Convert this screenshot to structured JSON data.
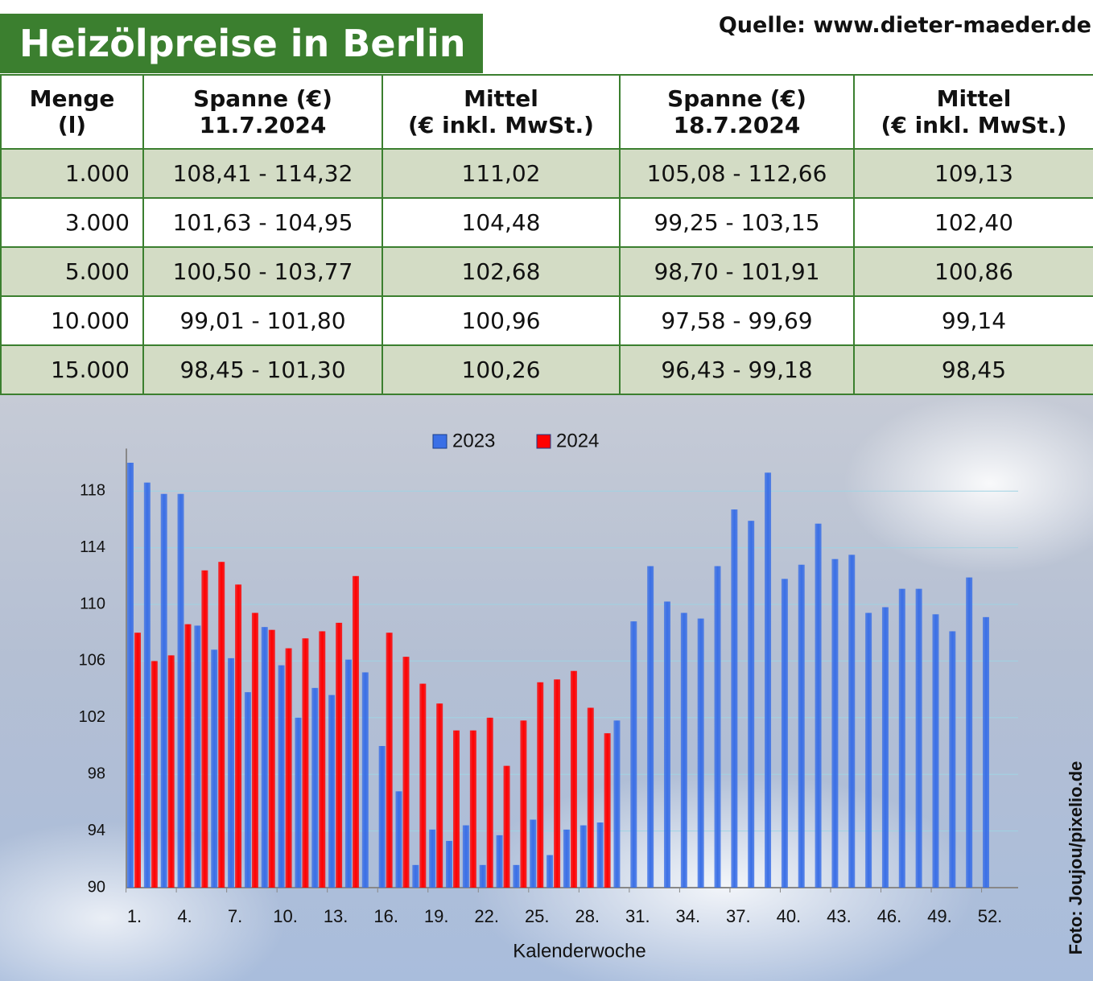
{
  "header": {
    "title": "Heizölpreise in Berlin",
    "source": "Quelle: www.dieter-maeder.de"
  },
  "table": {
    "headers": [
      [
        "Menge",
        "(l)"
      ],
      [
        "Spanne (€)",
        "11.7.2024"
      ],
      [
        "Mittel",
        "(€ inkl. MwSt.)"
      ],
      [
        "Spanne (€)",
        "18.7.2024"
      ],
      [
        "Mittel",
        "(€ inkl. MwSt.)"
      ]
    ],
    "rows": [
      [
        "1.000",
        "108,41 - 114,32",
        "111,02",
        "105,08 - 112,66",
        "109,13"
      ],
      [
        "3.000",
        "101,63 - 104,95",
        "104,48",
        "99,25 - 103,15",
        "102,40"
      ],
      [
        "5.000",
        "100,50 - 103,77",
        "102,68",
        "98,70 - 101,91",
        "100,86"
      ],
      [
        "10.000",
        "99,01 - 101,80",
        "100,96",
        "97,58 - 99,69",
        "99,14"
      ],
      [
        "15.000",
        "98,45 - 101,30",
        "100,26",
        "96,43 - 99,18",
        "98,45"
      ]
    ]
  },
  "chart_data": {
    "type": "bar",
    "x_label": "Kalenderwoche",
    "credit": "Foto: Joujou/pixelio.de",
    "categories": [
      "1.",
      null,
      null,
      "4.",
      null,
      null,
      "7.",
      null,
      null,
      "10.",
      null,
      null,
      "13.",
      null,
      null,
      "16.",
      null,
      null,
      "19.",
      null,
      null,
      "22.",
      null,
      null,
      "25.",
      null,
      null,
      "28.",
      null,
      null,
      "31.",
      null,
      null,
      "34.",
      null,
      null,
      "37.",
      null,
      null,
      "40.",
      null,
      null,
      "43.",
      null,
      null,
      "46.",
      null,
      null,
      "49.",
      null,
      null,
      "52."
    ],
    "series": [
      {
        "name": "2023",
        "color": "#3a6fe6",
        "values": [
          120.0,
          118.6,
          117.8,
          117.8,
          108.5,
          106.8,
          106.2,
          103.8,
          108.4,
          105.7,
          102.0,
          104.1,
          103.6,
          106.1,
          105.2,
          100.0,
          96.8,
          91.6,
          94.1,
          93.3,
          94.4,
          91.6,
          93.7,
          91.6,
          94.8,
          92.3,
          94.1,
          94.4,
          94.6,
          101.8,
          108.8,
          112.7,
          110.2,
          109.4,
          109.0,
          112.7,
          116.7,
          115.9,
          119.3,
          111.8,
          112.8,
          115.7,
          113.2,
          113.5,
          109.4,
          109.8,
          111.1,
          111.1,
          109.3,
          108.1,
          111.9,
          109.1
        ]
      },
      {
        "name": "2024",
        "color": "#ff0000",
        "values": [
          108.0,
          106.0,
          106.4,
          108.6,
          112.4,
          113.0,
          111.4,
          109.4,
          108.2,
          106.9,
          107.6,
          108.1,
          108.7,
          112.0,
          null,
          108.0,
          106.3,
          104.4,
          103.0,
          101.1,
          101.1,
          102.0,
          98.6,
          101.8,
          104.5,
          104.7,
          105.3,
          102.7,
          100.9,
          null,
          null,
          null,
          null,
          null,
          null,
          null,
          null,
          null,
          null,
          null,
          null,
          null,
          null,
          null,
          null,
          null,
          null,
          null,
          null,
          null,
          null,
          null
        ]
      }
    ],
    "ylim": [
      90,
      121
    ],
    "yticks": [
      90,
      94,
      98,
      102,
      106,
      110,
      114,
      118
    ],
    "grid": true,
    "legend": "top"
  }
}
